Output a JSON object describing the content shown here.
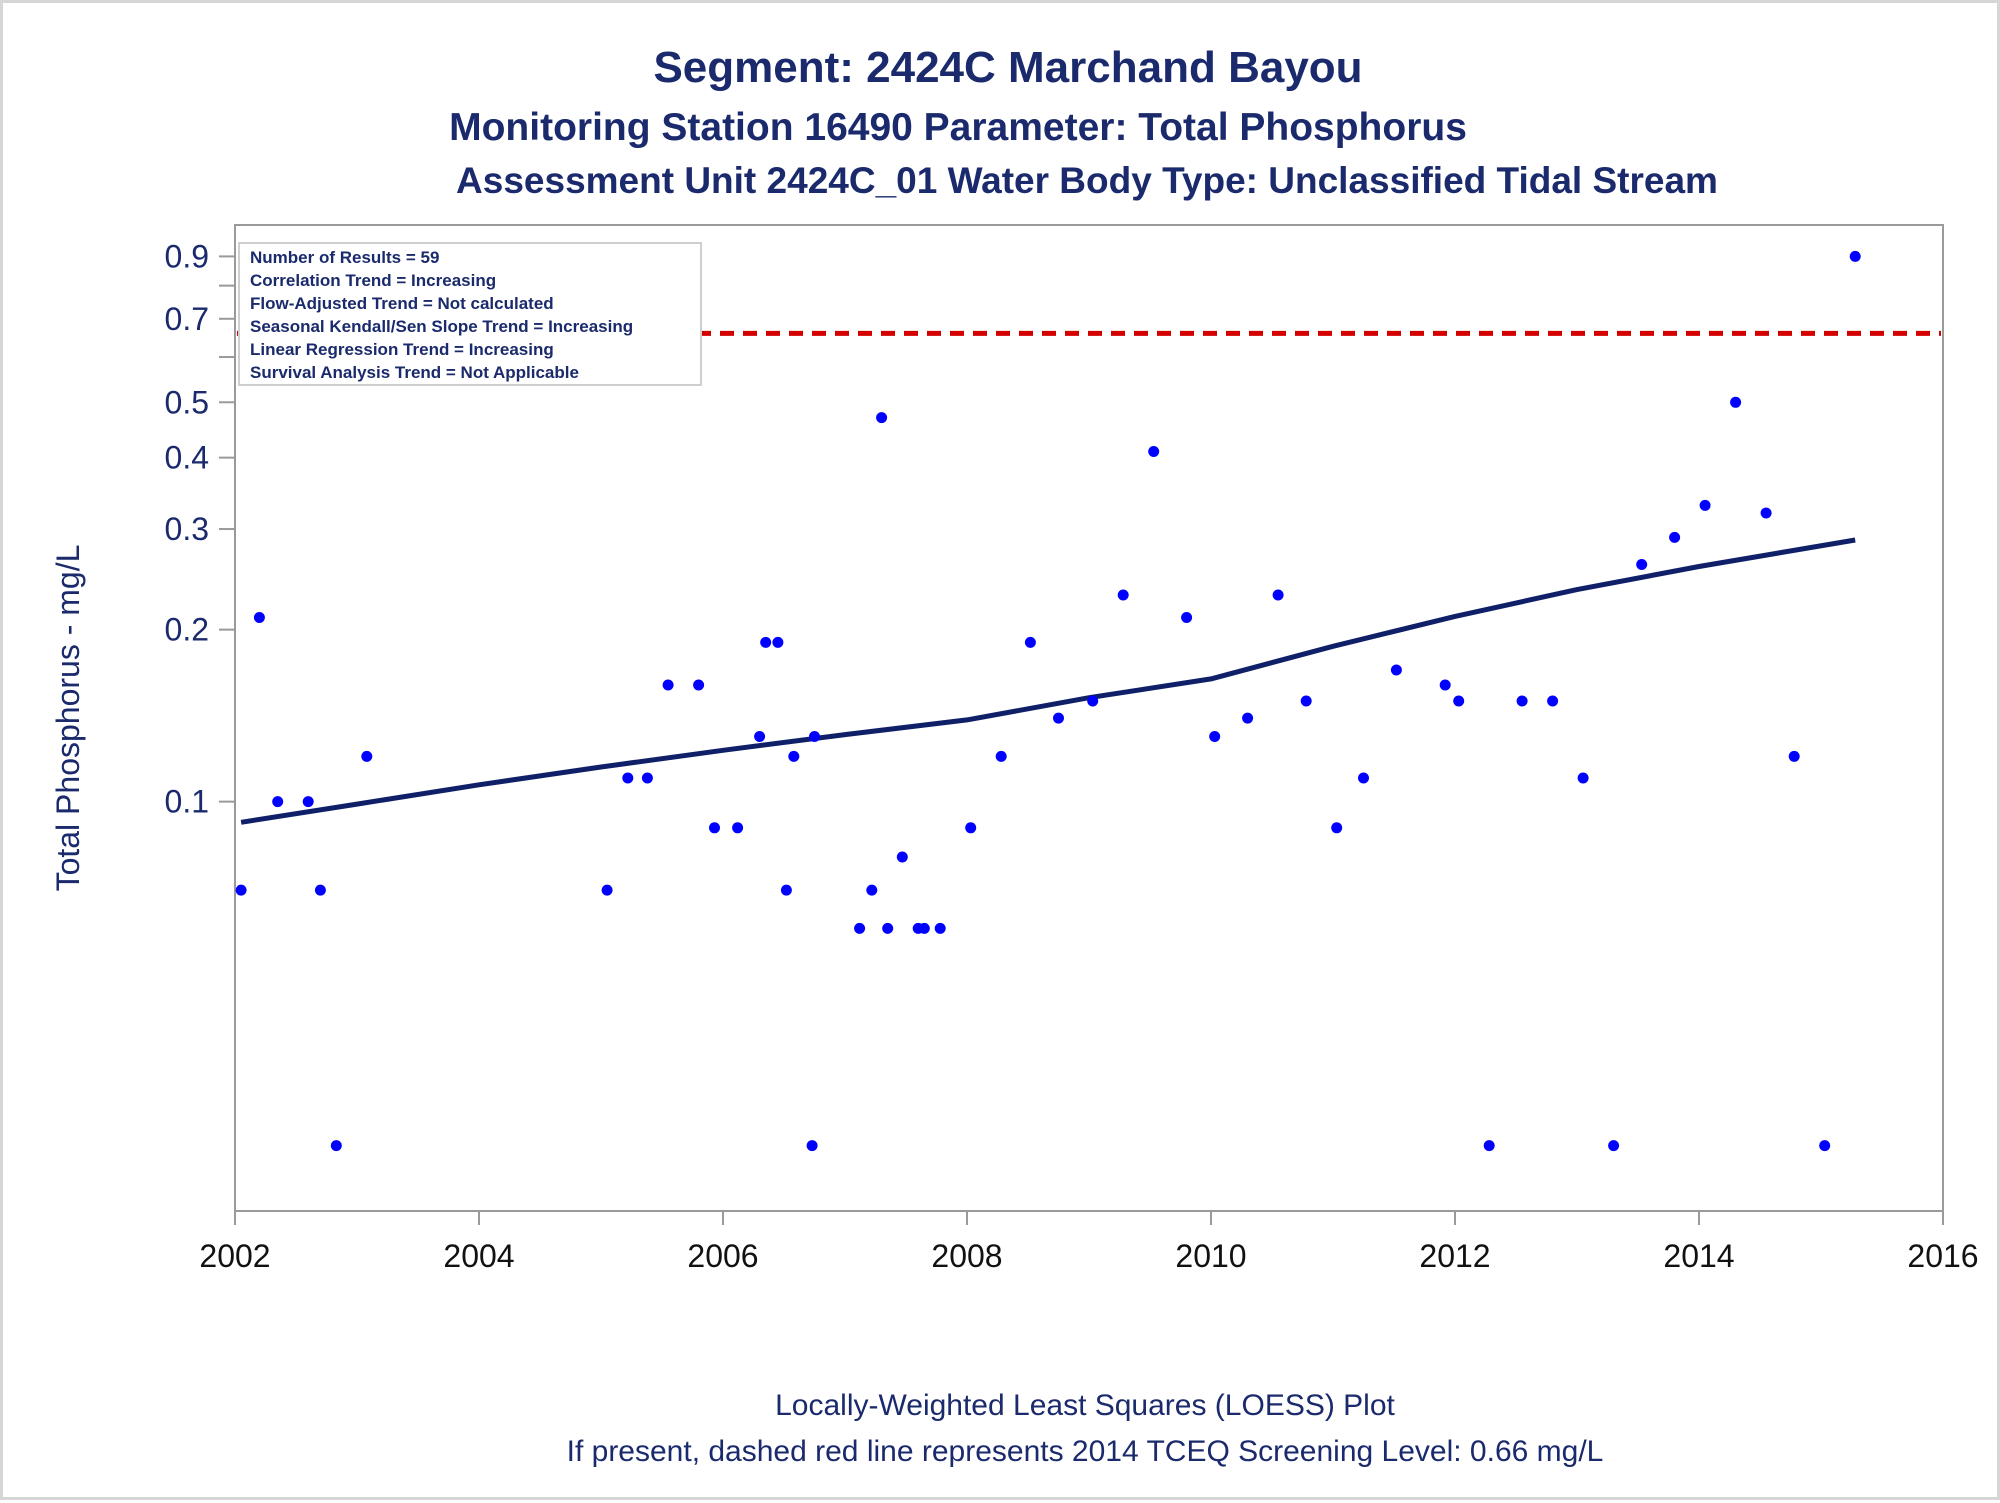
{
  "titles": {
    "line1": "Segment: 2424C  Marchand Bayou",
    "line2": "Monitoring Station 16490 Parameter: Total Phosphorus",
    "line3": "Assessment Unit 2424C_01   Water Body Type: Unclassified Tidal Stream"
  },
  "footer": {
    "line1": "Locally-Weighted Least Squares (LOESS) Plot",
    "line2": "If present, dashed red line represents 2014 TCEQ Screening Level: 0.66 mg/L"
  },
  "info_box": [
    "Number of Results = 59",
    "Correlation Trend = Increasing",
    "Flow-Adjusted Trend = Not calculated",
    "Seasonal Kendall/Sen Slope Trend = Increasing",
    "Linear Regression Trend = Increasing",
    "Survival Analysis Trend = Not Applicable"
  ],
  "colors": {
    "title": "#1a2a6c",
    "axis_text": "#1a2a6c",
    "x_tick_text": "#111111",
    "points": "#0000ff",
    "loess": "#0f2068",
    "screening": "#d40000",
    "frame": "#9a9a9a"
  },
  "chart_data": {
    "type": "scatter",
    "ylabel": "Total Phosphorus - mg/L",
    "xlabel": "",
    "y_scale": "log",
    "ylim": [
      0.02,
      0.95
    ],
    "xlim": [
      2002,
      2016
    ],
    "x_ticks": [
      2002,
      2004,
      2006,
      2008,
      2010,
      2012,
      2014,
      2016
    ],
    "y_ticks": [
      {
        "value": 0.1,
        "label": "0.1"
      },
      {
        "value": 0.2,
        "label": "0.2"
      },
      {
        "value": 0.3,
        "label": "0.3"
      },
      {
        "value": 0.4,
        "label": "0.4"
      },
      {
        "value": 0.5,
        "label": "0.5"
      },
      {
        "value": 0.7,
        "label": "0.7"
      },
      {
        "value": 0.9,
        "label": "0.9"
      }
    ],
    "y_minor_ticks": [
      0.6,
      0.8
    ],
    "screening_level": 0.66,
    "points": [
      {
        "x": 2002.05,
        "y": 0.07
      },
      {
        "x": 2002.2,
        "y": 0.21
      },
      {
        "x": 2002.35,
        "y": 0.1
      },
      {
        "x": 2002.6,
        "y": 0.1
      },
      {
        "x": 2002.7,
        "y": 0.07
      },
      {
        "x": 2002.83,
        "y": 0.025
      },
      {
        "x": 2003.08,
        "y": 0.12
      },
      {
        "x": 2005.05,
        "y": 0.07
      },
      {
        "x": 2005.22,
        "y": 0.11
      },
      {
        "x": 2005.38,
        "y": 0.11
      },
      {
        "x": 2005.55,
        "y": 0.16
      },
      {
        "x": 2005.8,
        "y": 0.16
      },
      {
        "x": 2005.93,
        "y": 0.09
      },
      {
        "x": 2006.12,
        "y": 0.09
      },
      {
        "x": 2006.3,
        "y": 0.13
      },
      {
        "x": 2006.35,
        "y": 0.19
      },
      {
        "x": 2006.45,
        "y": 0.19
      },
      {
        "x": 2006.52,
        "y": 0.07
      },
      {
        "x": 2006.58,
        "y": 0.12
      },
      {
        "x": 2006.73,
        "y": 0.025
      },
      {
        "x": 2006.75,
        "y": 0.13
      },
      {
        "x": 2007.12,
        "y": 0.06
      },
      {
        "x": 2007.22,
        "y": 0.07
      },
      {
        "x": 2007.3,
        "y": 0.47
      },
      {
        "x": 2007.35,
        "y": 0.06
      },
      {
        "x": 2007.47,
        "y": 0.08
      },
      {
        "x": 2007.6,
        "y": 0.06
      },
      {
        "x": 2007.65,
        "y": 0.06
      },
      {
        "x": 2007.78,
        "y": 0.06
      },
      {
        "x": 2008.03,
        "y": 0.09
      },
      {
        "x": 2008.28,
        "y": 0.12
      },
      {
        "x": 2008.52,
        "y": 0.19
      },
      {
        "x": 2008.75,
        "y": 0.14
      },
      {
        "x": 2009.03,
        "y": 0.15
      },
      {
        "x": 2009.28,
        "y": 0.23
      },
      {
        "x": 2009.53,
        "y": 0.41
      },
      {
        "x": 2009.8,
        "y": 0.21
      },
      {
        "x": 2010.03,
        "y": 0.13
      },
      {
        "x": 2010.3,
        "y": 0.14
      },
      {
        "x": 2010.55,
        "y": 0.23
      },
      {
        "x": 2010.78,
        "y": 0.15
      },
      {
        "x": 2011.03,
        "y": 0.09
      },
      {
        "x": 2011.25,
        "y": 0.11
      },
      {
        "x": 2011.52,
        "y": 0.17
      },
      {
        "x": 2011.92,
        "y": 0.16
      },
      {
        "x": 2012.03,
        "y": 0.15
      },
      {
        "x": 2012.28,
        "y": 0.025
      },
      {
        "x": 2012.55,
        "y": 0.15
      },
      {
        "x": 2012.8,
        "y": 0.15
      },
      {
        "x": 2013.05,
        "y": 0.11
      },
      {
        "x": 2013.3,
        "y": 0.025
      },
      {
        "x": 2013.53,
        "y": 0.26
      },
      {
        "x": 2013.8,
        "y": 0.29
      },
      {
        "x": 2014.05,
        "y": 0.33
      },
      {
        "x": 2014.3,
        "y": 0.5
      },
      {
        "x": 2014.55,
        "y": 0.32
      },
      {
        "x": 2014.78,
        "y": 0.12
      },
      {
        "x": 2015.03,
        "y": 0.025
      },
      {
        "x": 2015.28,
        "y": 0.9
      }
    ],
    "loess": [
      {
        "x": 2002.05,
        "y": 0.092
      },
      {
        "x": 2003.0,
        "y": 0.099
      },
      {
        "x": 2004.0,
        "y": 0.107
      },
      {
        "x": 2005.0,
        "y": 0.115
      },
      {
        "x": 2006.0,
        "y": 0.123
      },
      {
        "x": 2007.0,
        "y": 0.131
      },
      {
        "x": 2008.0,
        "y": 0.139
      },
      {
        "x": 2009.0,
        "y": 0.152
      },
      {
        "x": 2010.0,
        "y": 0.164
      },
      {
        "x": 2011.0,
        "y": 0.187
      },
      {
        "x": 2012.0,
        "y": 0.211
      },
      {
        "x": 2013.0,
        "y": 0.235
      },
      {
        "x": 2014.0,
        "y": 0.258
      },
      {
        "x": 2015.28,
        "y": 0.287
      }
    ]
  }
}
